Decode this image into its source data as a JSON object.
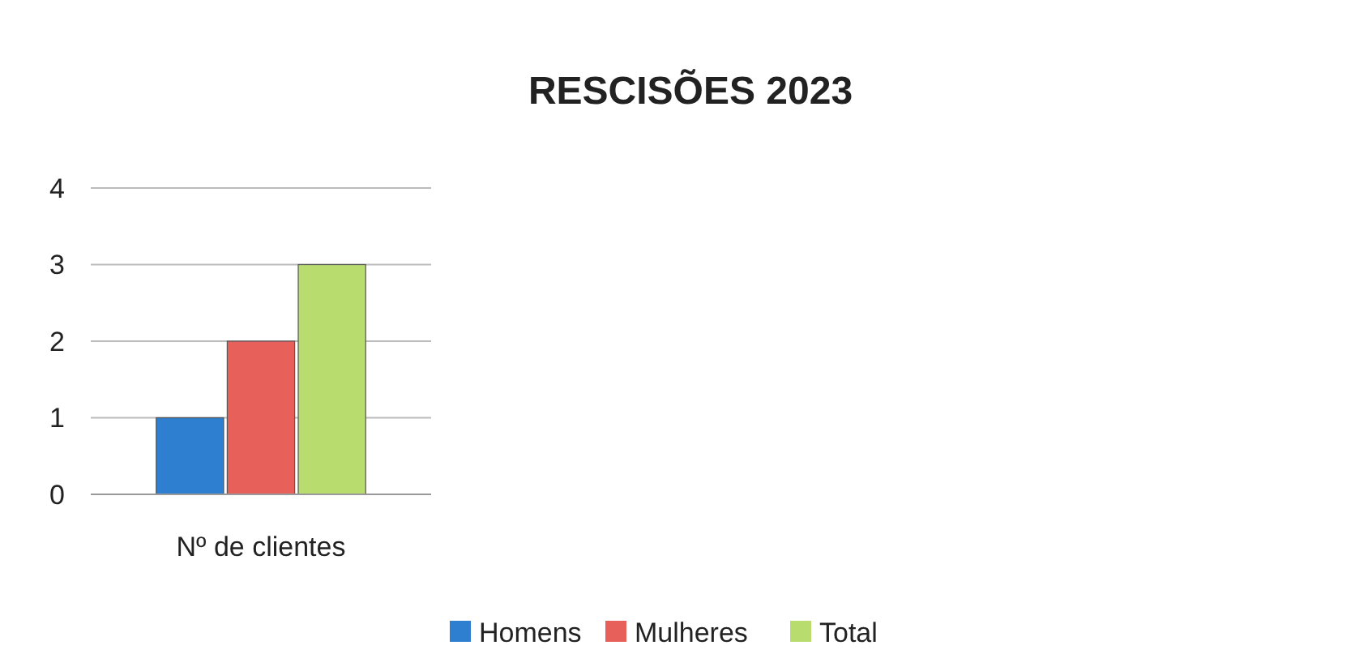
{
  "chart_data": {
    "type": "bar",
    "title": "RESCISÕES 2023",
    "categories": [
      "Nº de clientes"
    ],
    "series": [
      {
        "name": "Homens",
        "color": "#2f7fd0",
        "values": [
          1
        ]
      },
      {
        "name": "Mulheres",
        "color": "#e8605a",
        "values": [
          2
        ]
      },
      {
        "name": "Total",
        "color": "#b8dc6e",
        "values": [
          3
        ]
      }
    ],
    "ylim": [
      0,
      4
    ],
    "yticks": [
      0,
      1,
      2,
      3,
      4
    ],
    "grid": "y",
    "legend": "bottom"
  }
}
